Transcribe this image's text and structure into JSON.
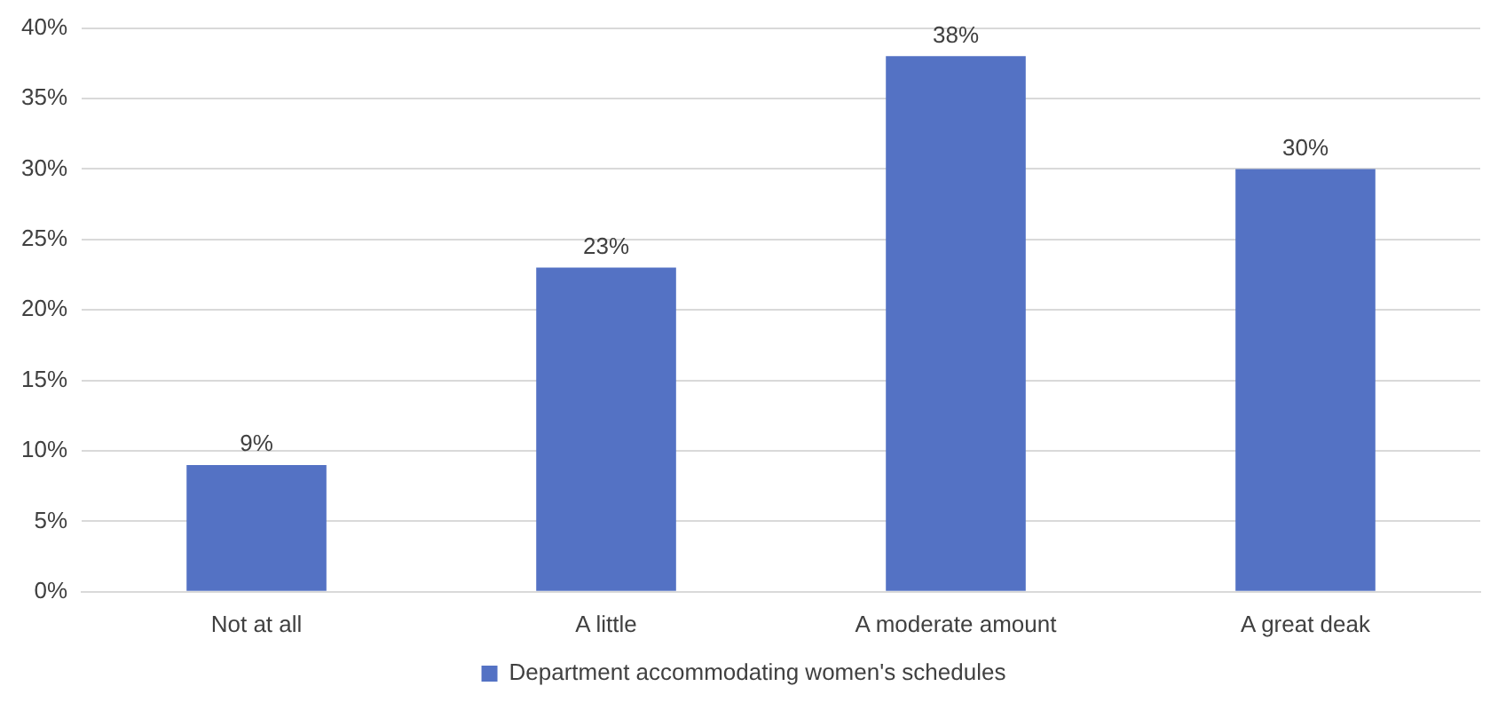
{
  "chart_data": {
    "type": "bar",
    "categories": [
      "Not at all",
      "A little",
      "A moderate amount",
      "A great deak"
    ],
    "series": [
      {
        "name": "Department accommodating women's schedules",
        "color": "#5472c4",
        "values": [
          9,
          23,
          38,
          30
        ],
        "value_labels": [
          "9%",
          "23%",
          "38%",
          "30%"
        ]
      }
    ],
    "ylim": [
      0,
      40
    ],
    "yticks": [
      {
        "value": 0,
        "label": "0%"
      },
      {
        "value": 5,
        "label": "5%"
      },
      {
        "value": 10,
        "label": "10%"
      },
      {
        "value": 15,
        "label": "15%"
      },
      {
        "value": 20,
        "label": "20%"
      },
      {
        "value": 25,
        "label": "25%"
      },
      {
        "value": 30,
        "label": "30%"
      },
      {
        "value": 35,
        "label": "35%"
      },
      {
        "value": 40,
        "label": "40%"
      }
    ],
    "grid": "y",
    "legend": "bottom"
  }
}
